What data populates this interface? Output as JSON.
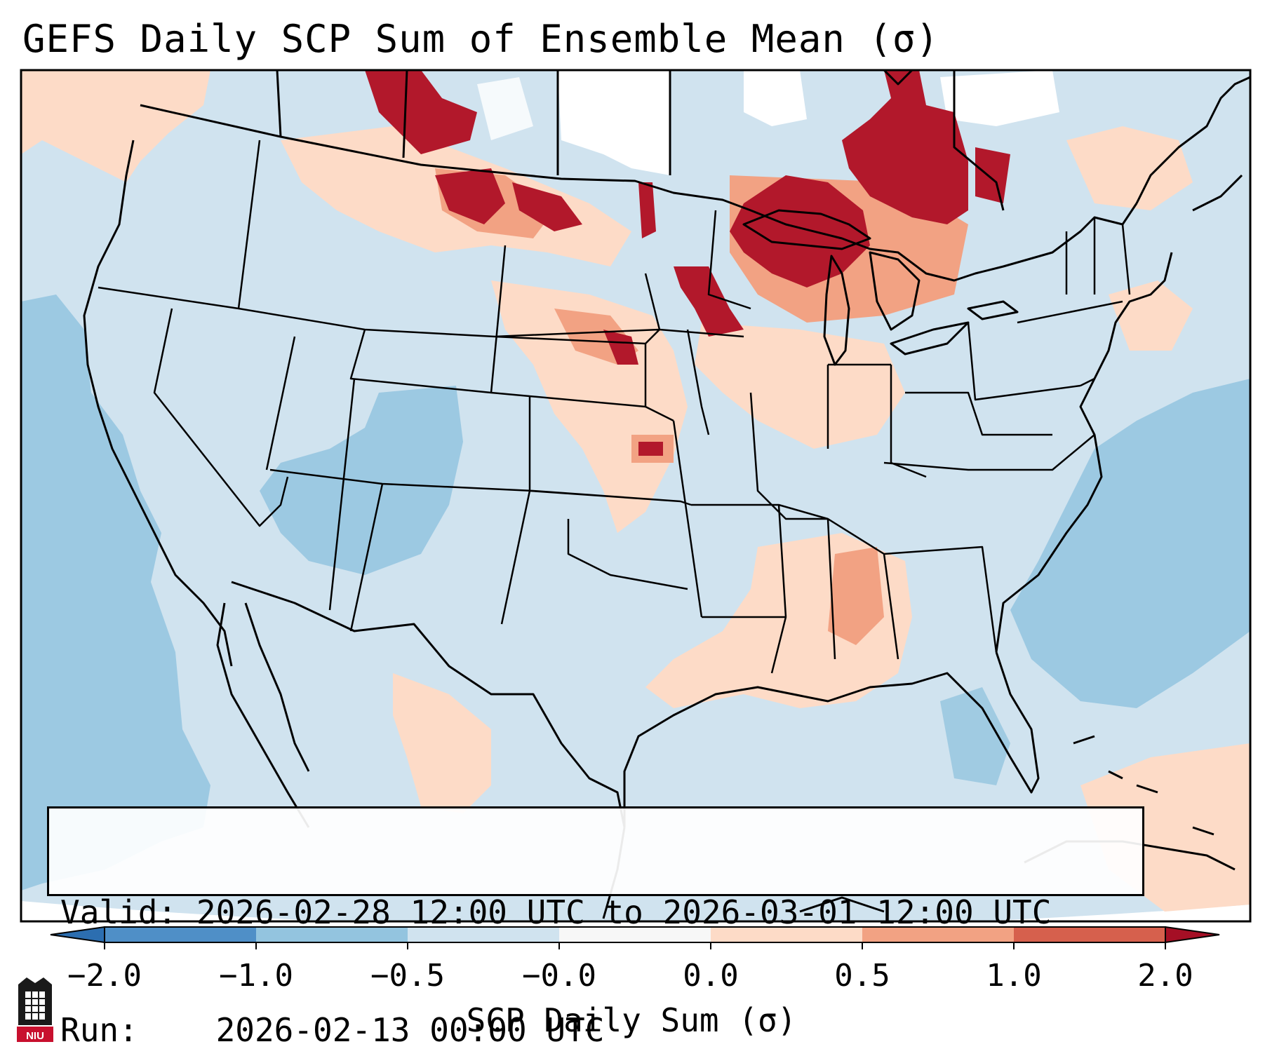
{
  "title": "GEFS Daily SCP Sum of Ensemble Mean (σ)",
  "info": {
    "valid_label": "Valid:",
    "valid_value": "2026-02-28 12:00 UTC to 2026-03-01 12:00 UTC",
    "run_label": "Run:",
    "run_value": "2026-02-13 00:00 UTC"
  },
  "colorbar": {
    "title": "SCP Daily Sum (σ)",
    "tick_labels": [
      "−2.0",
      "−1.0",
      "−0.5",
      "−0.0",
      "0.0",
      "0.5",
      "1.0",
      "2.0"
    ],
    "bin_colors": [
      "#4f8fc7",
      "#93c4df",
      "#d0e3ef",
      "#f7f7f7",
      "#fddbc7",
      "#f2a283",
      "#d6604d",
      "#b2182b"
    ],
    "under_color": "#2c6eb0",
    "over_color": "#a50f25"
  },
  "map": {
    "ocean_color": "#d0e3ef",
    "palette": {
      "strong_negative": "#93c4df",
      "weak_positive": "#fddbc7",
      "moderate_positive": "#f2a283",
      "strong_positive": "#b2182b",
      "near_zero": "#ffffff"
    }
  },
  "logo": {
    "text": "NIU"
  }
}
